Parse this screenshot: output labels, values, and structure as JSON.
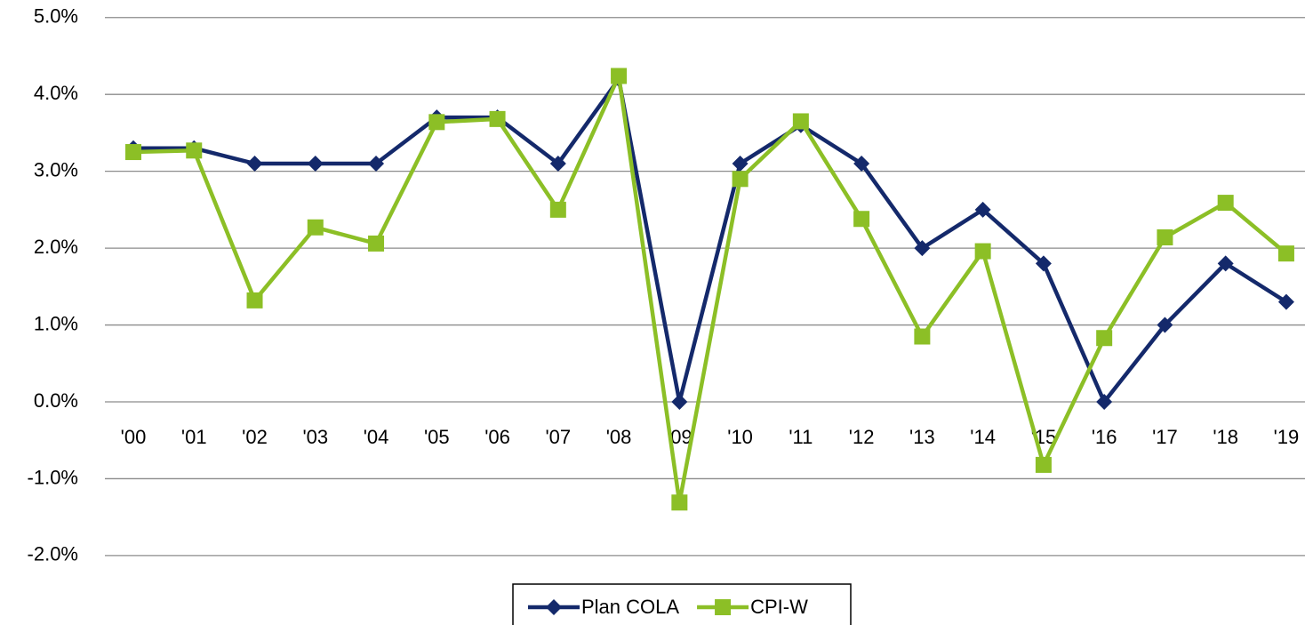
{
  "chart_data": {
    "type": "line",
    "categories": [
      "'00",
      "'01",
      "'02",
      "'03",
      "'04",
      "'05",
      "'06",
      "'07",
      "'08",
      "'09",
      "'10",
      "'11",
      "'12",
      "'13",
      "'14",
      "'15",
      "'16",
      "'17",
      "'18",
      "'19"
    ],
    "series": [
      {
        "name": "Plan COLA",
        "color": "#14296b",
        "marker": "diamond",
        "values": [
          3.3,
          3.3,
          3.1,
          3.1,
          3.1,
          3.7,
          3.7,
          3.1,
          4.2,
          0.0,
          3.1,
          3.6,
          3.1,
          2.0,
          2.5,
          1.8,
          0.0,
          1.0,
          1.8,
          1.3
        ]
      },
      {
        "name": "CPI-W",
        "color": "#8cbf26",
        "marker": "square",
        "values": [
          3.25,
          3.27,
          1.32,
          2.27,
          2.06,
          3.64,
          3.68,
          2.5,
          4.24,
          -1.31,
          2.9,
          3.65,
          2.38,
          0.85,
          1.96,
          -0.82,
          0.83,
          2.14,
          2.59,
          1.93
        ]
      }
    ],
    "ylim": [
      -2.5,
      5.2
    ],
    "yticks": [
      {
        "value": -2,
        "label": "-2.0%"
      },
      {
        "value": -1,
        "label": "-1.0%"
      },
      {
        "value": 0,
        "label": "0.0%"
      },
      {
        "value": 1,
        "label": "1.0%"
      },
      {
        "value": 2,
        "label": "2.0%"
      },
      {
        "value": 3,
        "label": "3.0%"
      },
      {
        "value": 4,
        "label": "4.0%"
      },
      {
        "value": 5,
        "label": "5.0%"
      }
    ],
    "grid": true,
    "legend": "bottom"
  }
}
